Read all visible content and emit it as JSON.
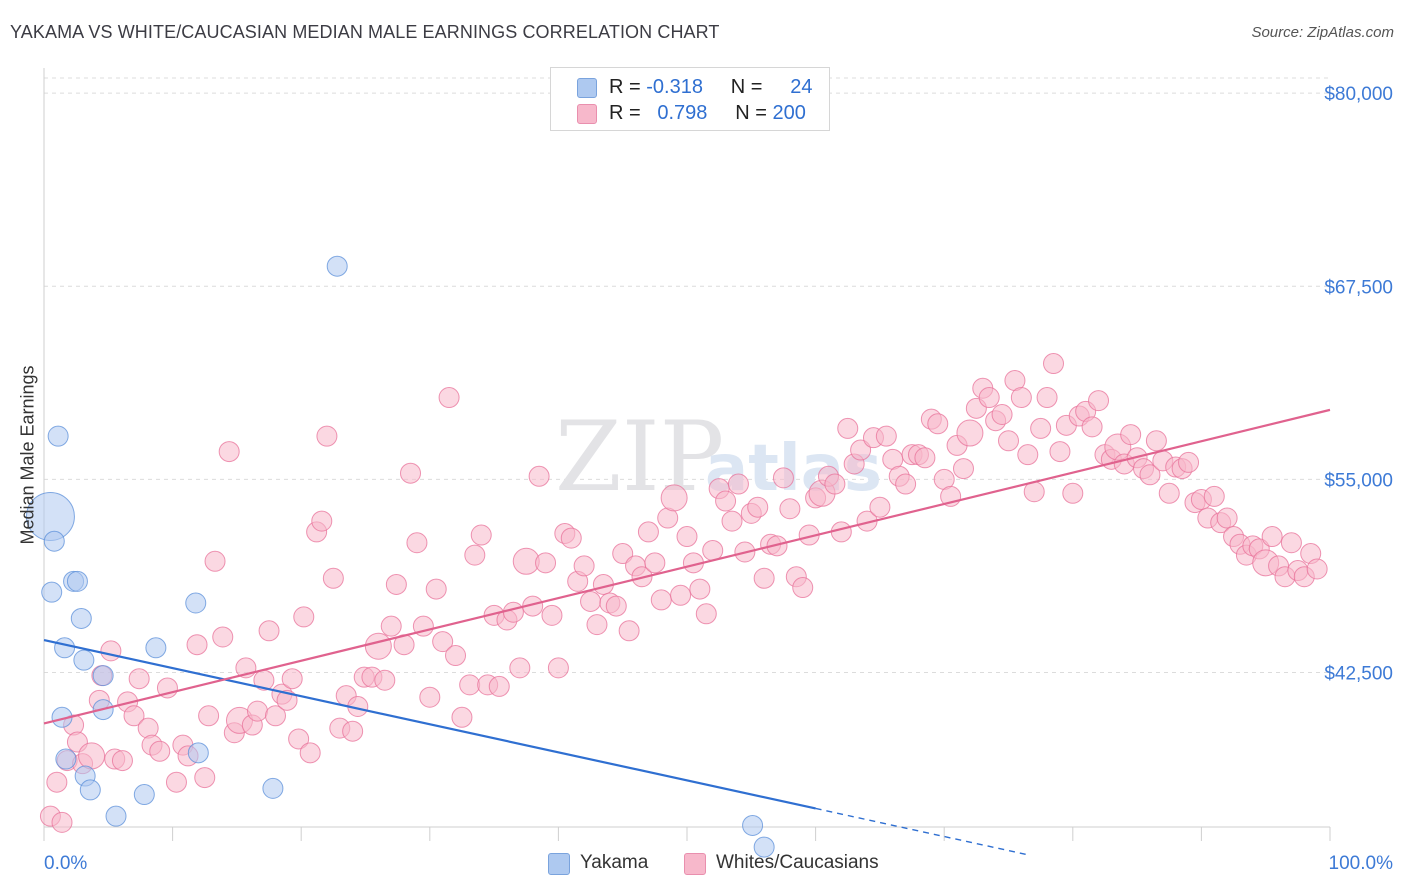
{
  "header": {
    "title": "YAKAMA VS WHITE/CAUCASIAN MEDIAN MALE EARNINGS CORRELATION CHART",
    "source": "Source: ZipAtlas.com"
  },
  "watermark": "ZIPatlas",
  "legend": {
    "rows": [
      {
        "r_label": "R =",
        "r_value": "-0.318",
        "n_label": "N =",
        "n_value": "24",
        "color": "#aec9f0"
      },
      {
        "r_label": "R =",
        "r_value": "0.798",
        "n_label": "N =",
        "n_value": "200",
        "color": "#f7b8cb"
      }
    ]
  },
  "bottom_legend": [
    {
      "label": "Yakama",
      "color": "#aec9f0"
    },
    {
      "label": "Whites/Caucasians",
      "color": "#f7b8cb"
    }
  ],
  "chart_data": {
    "type": "scatter",
    "ylabel": "Median Male Earnings",
    "xlim": [
      0,
      100
    ],
    "ylim": [
      32500,
      81500
    ],
    "x_tick_labels": [
      "0.0%",
      "100.0%"
    ],
    "y_ticks": [
      42500,
      55000,
      67500,
      80000
    ],
    "y_tick_labels": [
      "$42,500",
      "$55,000",
      "$67,500",
      "$80,000"
    ],
    "grid": true,
    "series": [
      {
        "name": "Yakama",
        "color": "#5b8fd9",
        "fill": "#aec9f0",
        "trend": {
          "x0": 0,
          "y0": 44600,
          "x1": 60,
          "y1": 33700,
          "dash_to_x": 76.5
        },
        "points": [
          [
            0.5,
            52600
          ],
          [
            0.8,
            51000
          ],
          [
            1.1,
            57800
          ],
          [
            0.6,
            47700
          ],
          [
            2.3,
            48400
          ],
          [
            2.6,
            48400
          ],
          [
            2.9,
            46000
          ],
          [
            1.6,
            44100
          ],
          [
            3.1,
            43300
          ],
          [
            4.6,
            42300
          ],
          [
            1.4,
            39600
          ],
          [
            4.6,
            40100
          ],
          [
            1.7,
            36900
          ],
          [
            3.2,
            35800
          ],
          [
            3.6,
            34900
          ],
          [
            5.6,
            33200
          ],
          [
            7.8,
            34600
          ],
          [
            8.7,
            44100
          ],
          [
            11.8,
            47000
          ],
          [
            12.0,
            37300
          ],
          [
            17.8,
            35000
          ],
          [
            22.8,
            68800
          ],
          [
            55.1,
            32600
          ],
          [
            56.0,
            31200
          ]
        ]
      },
      {
        "name": "Whites/Caucasians",
        "color": "#e8729a",
        "fill": "#f7b8cb",
        "trend": {
          "x0": 0,
          "y0": 39200,
          "x1": 100,
          "y1": 59500
        },
        "points": [
          [
            0.5,
            33200
          ],
          [
            1.0,
            35400
          ],
          [
            1.4,
            32800
          ],
          [
            1.8,
            36800
          ],
          [
            2.3,
            39100
          ],
          [
            2.6,
            38000
          ],
          [
            3.0,
            36600
          ],
          [
            3.7,
            37100
          ],
          [
            4.3,
            40700
          ],
          [
            4.5,
            42300
          ],
          [
            5.2,
            43900
          ],
          [
            5.5,
            36900
          ],
          [
            6.1,
            36800
          ],
          [
            6.5,
            40600
          ],
          [
            7.0,
            39700
          ],
          [
            7.4,
            42100
          ],
          [
            8.1,
            38900
          ],
          [
            8.4,
            37800
          ],
          [
            9.0,
            37400
          ],
          [
            9.6,
            41500
          ],
          [
            10.3,
            35400
          ],
          [
            10.8,
            37800
          ],
          [
            11.2,
            37100
          ],
          [
            11.9,
            44300
          ],
          [
            12.5,
            35700
          ],
          [
            12.8,
            39700
          ],
          [
            13.3,
            49700
          ],
          [
            13.9,
            44800
          ],
          [
            14.4,
            56800
          ],
          [
            14.8,
            38600
          ],
          [
            15.2,
            39400
          ],
          [
            15.7,
            42800
          ],
          [
            16.2,
            39100
          ],
          [
            16.6,
            40000
          ],
          [
            17.1,
            42000
          ],
          [
            17.5,
            45200
          ],
          [
            18.0,
            39700
          ],
          [
            18.5,
            41100
          ],
          [
            18.9,
            40700
          ],
          [
            19.3,
            42100
          ],
          [
            19.8,
            38200
          ],
          [
            20.2,
            46100
          ],
          [
            20.7,
            37300
          ],
          [
            21.2,
            51600
          ],
          [
            21.6,
            52300
          ],
          [
            22.0,
            57800
          ],
          [
            22.5,
            48600
          ],
          [
            23.0,
            38900
          ],
          [
            23.5,
            41000
          ],
          [
            24.0,
            38700
          ],
          [
            24.4,
            40300
          ],
          [
            24.9,
            42200
          ],
          [
            25.5,
            42200
          ],
          [
            26.0,
            44200
          ],
          [
            26.5,
            42000
          ],
          [
            27.0,
            45500
          ],
          [
            27.4,
            48200
          ],
          [
            28.0,
            44300
          ],
          [
            28.5,
            55400
          ],
          [
            29.0,
            50900
          ],
          [
            29.5,
            45500
          ],
          [
            30.0,
            40900
          ],
          [
            30.5,
            47900
          ],
          [
            31.0,
            44500
          ],
          [
            31.5,
            60300
          ],
          [
            32.0,
            43600
          ],
          [
            32.5,
            39600
          ],
          [
            33.1,
            41700
          ],
          [
            33.5,
            50100
          ],
          [
            34.0,
            51400
          ],
          [
            34.5,
            41700
          ],
          [
            35.0,
            46200
          ],
          [
            35.4,
            41600
          ],
          [
            36.0,
            45900
          ],
          [
            36.5,
            46400
          ],
          [
            37.0,
            42800
          ],
          [
            37.5,
            49700
          ],
          [
            38.0,
            46800
          ],
          [
            38.5,
            55200
          ],
          [
            39.0,
            49600
          ],
          [
            39.5,
            46200
          ],
          [
            40.0,
            42800
          ],
          [
            40.5,
            51500
          ],
          [
            41.0,
            51200
          ],
          [
            41.5,
            48400
          ],
          [
            42.0,
            49400
          ],
          [
            42.5,
            47100
          ],
          [
            43.0,
            45600
          ],
          [
            43.5,
            48200
          ],
          [
            44.0,
            47000
          ],
          [
            44.5,
            46800
          ],
          [
            45.0,
            50200
          ],
          [
            45.5,
            45200
          ],
          [
            46.0,
            49400
          ],
          [
            46.5,
            48700
          ],
          [
            47.0,
            51600
          ],
          [
            47.5,
            49600
          ],
          [
            48.0,
            47200
          ],
          [
            48.5,
            52500
          ],
          [
            49.0,
            53800
          ],
          [
            49.5,
            47500
          ],
          [
            50.0,
            51300
          ],
          [
            50.5,
            49600
          ],
          [
            51.0,
            47900
          ],
          [
            51.5,
            46300
          ],
          [
            52.0,
            50400
          ],
          [
            52.5,
            54400
          ],
          [
            53.0,
            53600
          ],
          [
            53.5,
            52300
          ],
          [
            54.0,
            54700
          ],
          [
            54.5,
            50300
          ],
          [
            55.0,
            52800
          ],
          [
            55.5,
            53200
          ],
          [
            56.0,
            48600
          ],
          [
            56.5,
            50800
          ],
          [
            57.0,
            50700
          ],
          [
            57.5,
            55100
          ],
          [
            58.0,
            53100
          ],
          [
            58.5,
            48700
          ],
          [
            59.0,
            48000
          ],
          [
            59.5,
            51400
          ],
          [
            60.0,
            53800
          ],
          [
            60.5,
            54100
          ],
          [
            61.0,
            55200
          ],
          [
            61.5,
            54700
          ],
          [
            62.0,
            51600
          ],
          [
            62.5,
            58300
          ],
          [
            63.0,
            56000
          ],
          [
            63.5,
            56900
          ],
          [
            64.0,
            52300
          ],
          [
            64.5,
            57700
          ],
          [
            65.0,
            53200
          ],
          [
            65.5,
            57800
          ],
          [
            66.0,
            56300
          ],
          [
            66.5,
            55200
          ],
          [
            67.0,
            54700
          ],
          [
            67.5,
            56600
          ],
          [
            68.0,
            56600
          ],
          [
            68.5,
            56400
          ],
          [
            69.0,
            58900
          ],
          [
            69.5,
            58600
          ],
          [
            70.0,
            55000
          ],
          [
            70.5,
            53900
          ],
          [
            71.0,
            57200
          ],
          [
            71.5,
            55700
          ],
          [
            72.0,
            58000
          ],
          [
            72.5,
            59600
          ],
          [
            73.0,
            60900
          ],
          [
            73.5,
            60300
          ],
          [
            74.0,
            58800
          ],
          [
            74.5,
            59200
          ],
          [
            75.0,
            57500
          ],
          [
            75.5,
            61400
          ],
          [
            76.0,
            60300
          ],
          [
            76.5,
            56600
          ],
          [
            77.0,
            54200
          ],
          [
            77.5,
            58300
          ],
          [
            78.0,
            60300
          ],
          [
            78.5,
            62500
          ],
          [
            79.0,
            56800
          ],
          [
            79.5,
            58500
          ],
          [
            80.0,
            54100
          ],
          [
            80.5,
            59100
          ],
          [
            81.0,
            59400
          ],
          [
            81.5,
            58400
          ],
          [
            82.0,
            60100
          ],
          [
            82.5,
            56600
          ],
          [
            83.0,
            56300
          ],
          [
            83.5,
            57100
          ],
          [
            84.0,
            56000
          ],
          [
            84.5,
            57900
          ],
          [
            85.0,
            56400
          ],
          [
            85.5,
            55700
          ],
          [
            86.0,
            55300
          ],
          [
            86.5,
            57500
          ],
          [
            87.0,
            56200
          ],
          [
            87.5,
            54100
          ],
          [
            88.0,
            55800
          ],
          [
            88.5,
            55700
          ],
          [
            89.0,
            56100
          ],
          [
            89.5,
            53500
          ],
          [
            90.0,
            53700
          ],
          [
            90.5,
            52500
          ],
          [
            91.0,
            53900
          ],
          [
            91.5,
            52200
          ],
          [
            92.0,
            52500
          ],
          [
            92.5,
            51300
          ],
          [
            93.0,
            50800
          ],
          [
            93.5,
            50100
          ],
          [
            94.0,
            50700
          ],
          [
            94.5,
            50500
          ],
          [
            95.0,
            49600
          ],
          [
            95.5,
            51300
          ],
          [
            96.0,
            49400
          ],
          [
            96.5,
            48700
          ],
          [
            97.0,
            50900
          ],
          [
            97.5,
            49100
          ],
          [
            98.0,
            48700
          ],
          [
            98.5,
            50200
          ],
          [
            99.0,
            49200
          ]
        ]
      }
    ]
  }
}
